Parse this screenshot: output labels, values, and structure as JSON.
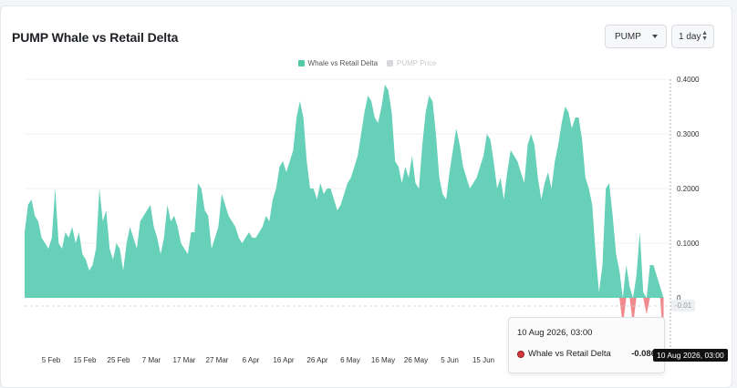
{
  "header": {
    "title": "PUMP Whale vs Retail Delta",
    "symbol_select": "PUMP",
    "timeframe_select": "1 day"
  },
  "legend": [
    {
      "label": "Whale vs Retail Delta",
      "color": "#4fc9a6",
      "active": true
    },
    {
      "label": "PUMP Price",
      "color": "#d6d8db",
      "active": false
    }
  ],
  "tooltip": {
    "date": "10 Aug 2026, 03:00",
    "series": "Whale vs Retail Delta",
    "value": "-0.086"
  },
  "crosshair": {
    "x_label": "10 Aug 2026, 03:00",
    "y_label": "-0.01"
  },
  "chart_data": {
    "type": "area",
    "title": "PUMP Whale vs Retail Delta",
    "positive_color": "#66d0b8",
    "negative_color": "#f08a8c",
    "x_tick_labels": [
      "5 Feb",
      "15 Feb",
      "25 Feb",
      "7 Mar",
      "17 Mar",
      "27 Mar",
      "6 Apr",
      "16 Apr",
      "26 Apr",
      "6 May",
      "16 May",
      "26 May",
      "5 Jun",
      "15 Jun"
    ],
    "y_tick_labels": [
      "0.4000",
      "0.3000",
      "0.2000",
      "0.1000",
      "0"
    ],
    "ylim": [
      -0.1,
      0.4
    ],
    "grid": true,
    "x_day_range": [
      0,
      190
    ],
    "series": [
      {
        "name": "Whale vs Retail Delta",
        "x": [
          0,
          1,
          2,
          3,
          4,
          5,
          6,
          7,
          8,
          9,
          10,
          11,
          12,
          13,
          14,
          15,
          16,
          17,
          18,
          19,
          20,
          21,
          22,
          23,
          24,
          25,
          26,
          27,
          28,
          29,
          30,
          31,
          32,
          33,
          34,
          35,
          36,
          37,
          38,
          39,
          40,
          41,
          42,
          43,
          44,
          45,
          46,
          47,
          48,
          49,
          50,
          51,
          52,
          53,
          54,
          55,
          56,
          57,
          58,
          59,
          60,
          61,
          62,
          63,
          64,
          65,
          66,
          67,
          68,
          69,
          70,
          71,
          72,
          73,
          74,
          75,
          76,
          77,
          78,
          79,
          80,
          81,
          82,
          83,
          84,
          85,
          86,
          87,
          88,
          89,
          90,
          91,
          92,
          93,
          94,
          95,
          96,
          97,
          98,
          99,
          100,
          101,
          102,
          103,
          104,
          105,
          106,
          107,
          108,
          109,
          110,
          111,
          112,
          113,
          114,
          115,
          116,
          117,
          118,
          119,
          120,
          121,
          122,
          123,
          124,
          125,
          126,
          127,
          128,
          129,
          130,
          131,
          132,
          133,
          134,
          135,
          136,
          137,
          138,
          139,
          140,
          141,
          142,
          143,
          144,
          145,
          146,
          147,
          148,
          149,
          150,
          151,
          152,
          153,
          154,
          155,
          156,
          157,
          158,
          159,
          160,
          161,
          162,
          163,
          164,
          165,
          166,
          167,
          168,
          169,
          170,
          171,
          172,
          173,
          174,
          175,
          176,
          177,
          178,
          179,
          180,
          181,
          182,
          183,
          184,
          185,
          186,
          187,
          188
        ],
        "values": [
          0.12,
          0.17,
          0.18,
          0.15,
          0.14,
          0.11,
          0.1,
          0.09,
          0.11,
          0.2,
          0.1,
          0.09,
          0.12,
          0.11,
          0.13,
          0.1,
          0.12,
          0.08,
          0.07,
          0.05,
          0.06,
          0.09,
          0.2,
          0.14,
          0.16,
          0.09,
          0.07,
          0.1,
          0.09,
          0.05,
          0.1,
          0.13,
          0.11,
          0.09,
          0.14,
          0.15,
          0.16,
          0.17,
          0.13,
          0.11,
          0.08,
          0.11,
          0.17,
          0.14,
          0.15,
          0.13,
          0.1,
          0.09,
          0.08,
          0.12,
          0.12,
          0.21,
          0.2,
          0.16,
          0.15,
          0.09,
          0.11,
          0.13,
          0.19,
          0.17,
          0.15,
          0.14,
          0.13,
          0.11,
          0.1,
          0.11,
          0.12,
          0.11,
          0.11,
          0.12,
          0.13,
          0.15,
          0.14,
          0.18,
          0.2,
          0.24,
          0.25,
          0.23,
          0.25,
          0.27,
          0.33,
          0.36,
          0.33,
          0.25,
          0.2,
          0.2,
          0.18,
          0.21,
          0.19,
          0.2,
          0.2,
          0.18,
          0.16,
          0.17,
          0.19,
          0.21,
          0.22,
          0.24,
          0.26,
          0.3,
          0.34,
          0.37,
          0.36,
          0.33,
          0.32,
          0.35,
          0.39,
          0.38,
          0.34,
          0.25,
          0.24,
          0.21,
          0.24,
          0.22,
          0.26,
          0.21,
          0.2,
          0.28,
          0.34,
          0.37,
          0.36,
          0.3,
          0.22,
          0.19,
          0.18,
          0.23,
          0.27,
          0.31,
          0.28,
          0.24,
          0.22,
          0.2,
          0.21,
          0.22,
          0.24,
          0.26,
          0.3,
          0.29,
          0.25,
          0.2,
          0.22,
          0.18,
          0.23,
          0.27,
          0.26,
          0.25,
          0.23,
          0.21,
          0.28,
          0.3,
          0.28,
          0.22,
          0.18,
          0.21,
          0.23,
          0.2,
          0.25,
          0.28,
          0.32,
          0.35,
          0.34,
          0.31,
          0.33,
          0.33,
          0.29,
          0.22,
          0.2,
          0.17,
          0.08,
          0.01,
          0.06,
          0.2,
          0.21,
          0.15,
          0.08,
          0.05,
          -0.05,
          0.06,
          0.02,
          -0.05,
          0.04,
          0.12,
          0.01,
          -0.03,
          0.06,
          0.06,
          0.04,
          0.02,
          -0.086
        ]
      }
    ]
  }
}
